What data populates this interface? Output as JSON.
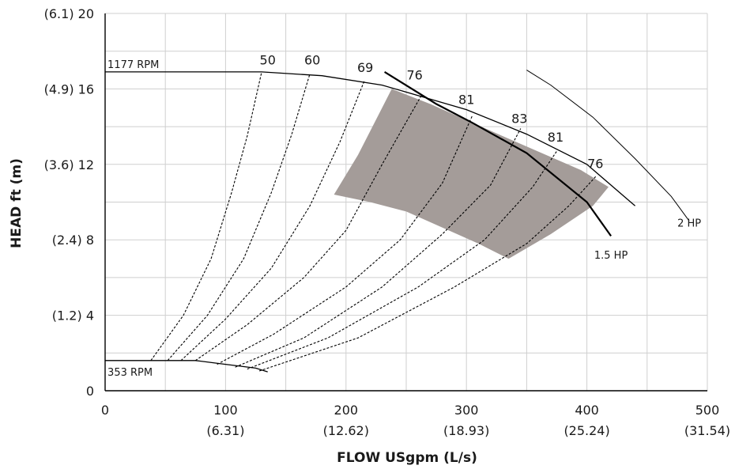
{
  "chart_data": {
    "type": "line",
    "xlabel": "FLOW USgpm (L/s)",
    "ylabel": "HEAD ft (m)",
    "xlim": [
      0,
      500
    ],
    "ylim": [
      0,
      20
    ],
    "grid": true,
    "x_ticks": [
      {
        "value": 0,
        "label": "0",
        "sub": ""
      },
      {
        "value": 100,
        "label": "100",
        "sub": "(6.31)"
      },
      {
        "value": 200,
        "label": "200",
        "sub": "(12.62)"
      },
      {
        "value": 300,
        "label": "300",
        "sub": "(18.93)"
      },
      {
        "value": 400,
        "label": "400",
        "sub": "(25.24)"
      },
      {
        "value": 500,
        "label": "500",
        "sub": "(31.54)"
      }
    ],
    "y_ticks": [
      {
        "value": 0,
        "label": "0"
      },
      {
        "value": 4,
        "label": "(1.2) 4"
      },
      {
        "value": 8,
        "label": "(2.4) 8"
      },
      {
        "value": 12,
        "label": "(3.6) 12"
      },
      {
        "value": 16,
        "label": "(4.9) 16"
      },
      {
        "value": 20,
        "label": "(6.1) 20"
      }
    ],
    "colors": {
      "curve": "#000000",
      "grid": "#cfcfcf",
      "region": "#a49c99"
    },
    "preferred_region": {
      "points": [
        [
          190,
          10.4
        ],
        [
          210,
          12.5
        ],
        [
          238,
          16.0
        ],
        [
          270,
          15.2
        ],
        [
          330,
          13.5
        ],
        [
          395,
          11.7
        ],
        [
          418,
          10.8
        ],
        [
          405,
          9.8
        ],
        [
          370,
          8.3
        ],
        [
          335,
          7.0
        ],
        [
          310,
          7.8
        ],
        [
          250,
          9.5
        ],
        [
          220,
          10.0
        ]
      ]
    },
    "rpm_curves": [
      {
        "name": "1177 RPM",
        "points": [
          [
            0,
            16.9
          ],
          [
            130,
            16.9
          ],
          [
            180,
            16.7
          ],
          [
            230,
            16.2
          ],
          [
            300,
            14.9
          ],
          [
            350,
            13.6
          ],
          [
            400,
            12.0
          ],
          [
            440,
            9.8
          ]
        ]
      },
      {
        "name": "353 RPM",
        "points": [
          [
            0,
            1.6
          ],
          [
            75,
            1.6
          ],
          [
            100,
            1.4
          ],
          [
            125,
            1.2
          ],
          [
            135,
            1.0
          ]
        ]
      }
    ],
    "rpm_labels": [
      "1177 RPM",
      "353 RPM"
    ],
    "efficiency_lines": [
      {
        "label": "50",
        "points": [
          [
            38,
            1.6
          ],
          [
            65,
            4.0
          ],
          [
            88,
            7.0
          ],
          [
            105,
            10.5
          ],
          [
            118,
            13.5
          ],
          [
            130,
            16.9
          ]
        ]
      },
      {
        "label": "60",
        "points": [
          [
            52,
            1.6
          ],
          [
            85,
            4.0
          ],
          [
            115,
            7.0
          ],
          [
            138,
            10.5
          ],
          [
            155,
            13.6
          ],
          [
            170,
            16.8
          ]
        ]
      },
      {
        "label": "69",
        "points": [
          [
            63,
            1.6
          ],
          [
            100,
            3.8
          ],
          [
            138,
            6.5
          ],
          [
            170,
            9.8
          ],
          [
            195,
            13.2
          ],
          [
            215,
            16.4
          ]
        ]
      },
      {
        "label": "76",
        "points": [
          [
            75,
            1.6
          ],
          [
            118,
            3.5
          ],
          [
            165,
            6.0
          ],
          [
            200,
            8.5
          ],
          [
            230,
            12.0
          ],
          [
            263,
            15.7
          ]
        ]
      },
      {
        "label": "81",
        "points": [
          [
            93,
            1.4
          ],
          [
            140,
            3.0
          ],
          [
            200,
            5.5
          ],
          [
            245,
            8.0
          ],
          [
            280,
            11.0
          ],
          [
            305,
            14.6
          ]
        ]
      },
      {
        "label": "83",
        "points": [
          [
            108,
            1.25
          ],
          [
            165,
            2.8
          ],
          [
            230,
            5.5
          ],
          [
            280,
            8.3
          ],
          [
            320,
            10.9
          ],
          [
            345,
            13.9
          ]
        ]
      },
      {
        "label": "81",
        "points": [
          [
            118,
            1.15
          ],
          [
            185,
            2.8
          ],
          [
            260,
            5.5
          ],
          [
            315,
            8.0
          ],
          [
            355,
            10.8
          ],
          [
            375,
            12.7
          ]
        ]
      },
      {
        "label": "76",
        "points": [
          [
            128,
            1.05
          ],
          [
            210,
            2.8
          ],
          [
            290,
            5.5
          ],
          [
            350,
            7.8
          ],
          [
            385,
            9.8
          ],
          [
            408,
            11.4
          ]
        ]
      }
    ],
    "efficiency_labels": [
      {
        "text": "50",
        "x": 135,
        "y": 17.3
      },
      {
        "text": "60",
        "x": 172,
        "y": 17.3
      },
      {
        "text": "69",
        "x": 216,
        "y": 16.9
      },
      {
        "text": "76",
        "x": 257,
        "y": 16.5
      },
      {
        "text": "81",
        "x": 300,
        "y": 15.2
      },
      {
        "text": "83",
        "x": 344,
        "y": 14.2
      },
      {
        "text": "81",
        "x": 374,
        "y": 13.2
      },
      {
        "text": "76",
        "x": 407,
        "y": 11.8
      }
    ],
    "hp_curves": [
      {
        "label": "1.5 HP",
        "points": [
          [
            232,
            16.9
          ],
          [
            275,
            15.2
          ],
          [
            305,
            14.2
          ],
          [
            350,
            12.6
          ],
          [
            400,
            10.0
          ],
          [
            420,
            8.2
          ]
        ],
        "weight": "heavy"
      },
      {
        "label": "2 HP",
        "points": [
          [
            350,
            17.0
          ],
          [
            370,
            16.2
          ],
          [
            405,
            14.5
          ],
          [
            440,
            12.3
          ],
          [
            470,
            10.3
          ],
          [
            485,
            9.0
          ]
        ],
        "weight": "thin"
      }
    ],
    "hp_labels": [
      "1.5 HP",
      "2 HP"
    ]
  }
}
